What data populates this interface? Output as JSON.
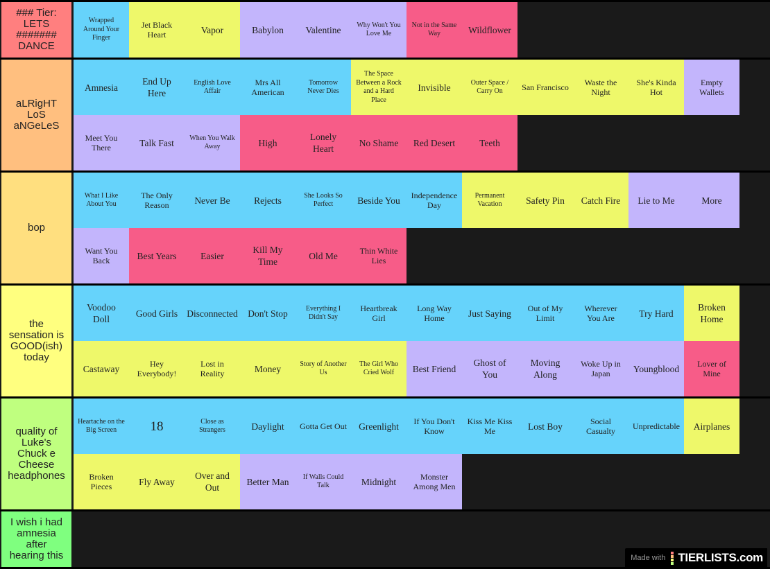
{
  "colors": {
    "b": "#66d3fb",
    "y": "#eef86a",
    "p": "#c3b5fc",
    "k": "#f75c88"
  },
  "tiers": [
    {
      "label": "### Tier:\nLETS\n#######\nDANCE",
      "color": "#ff7f7f",
      "rows": [
        [
          [
            "Wrapped Around Your Finger",
            "b"
          ],
          [
            "Jet Black Heart",
            "y"
          ],
          [
            "Vapor",
            "y"
          ],
          [
            "Babylon",
            "p"
          ],
          [
            "Valentine",
            "p"
          ],
          [
            "Why Won't You Love Me",
            "p"
          ],
          [
            "Not in the Same Way",
            "k"
          ],
          [
            "Wildflower",
            "k"
          ]
        ]
      ]
    },
    {
      "label": "aLRigHT\nLoS\naNGeLeS",
      "color": "#ffbf7f",
      "rows": [
        [
          [
            "Amnesia",
            "b"
          ],
          [
            "End Up Here",
            "b"
          ],
          [
            "English Love Affair",
            "b"
          ],
          [
            "Mrs All American",
            "b"
          ],
          [
            "Tomorrow Never Dies",
            "b"
          ],
          [
            "The Space Between a Rock and a Hard Place",
            "y"
          ],
          [
            "Invisible",
            "y"
          ],
          [
            "Outer Space / Carry On",
            "y"
          ],
          [
            "San Francisco",
            "y"
          ],
          [
            "Waste the Night",
            "y"
          ],
          [
            "She's Kinda Hot",
            "y"
          ],
          [
            "Empty Wallets",
            "p"
          ]
        ],
        [
          [
            "Meet You There",
            "p"
          ],
          [
            "Talk Fast",
            "p"
          ],
          [
            "When You Walk Away",
            "p"
          ],
          [
            "High",
            "k"
          ],
          [
            "Lonely Heart",
            "k"
          ],
          [
            "No Shame",
            "k"
          ],
          [
            "Red Desert",
            "k"
          ],
          [
            "Teeth",
            "k"
          ]
        ]
      ]
    },
    {
      "label": "bop",
      "color": "#ffdf7f",
      "rows": [
        [
          [
            "What I Like About You",
            "b"
          ],
          [
            "The Only Reason",
            "b"
          ],
          [
            "Never Be",
            "b"
          ],
          [
            "Rejects",
            "b"
          ],
          [
            "She Looks So Perfect",
            "b"
          ],
          [
            "Beside You",
            "b"
          ],
          [
            "Independence Day",
            "b"
          ],
          [
            "Permanent Vacation",
            "y"
          ],
          [
            "Safety Pin",
            "y"
          ],
          [
            "Catch Fire",
            "y"
          ],
          [
            "Lie to Me",
            "p"
          ],
          [
            "More",
            "p"
          ]
        ],
        [
          [
            "Want You Back",
            "p"
          ],
          [
            "Best Years",
            "k"
          ],
          [
            "Easier",
            "k"
          ],
          [
            "Kill My Time",
            "k"
          ],
          [
            "Old Me",
            "k"
          ],
          [
            "Thin White Lies",
            "k"
          ]
        ]
      ]
    },
    {
      "label": "the\nsensation is\nGOOD(ish)\ntoday",
      "color": "#ffff7f",
      "rows": [
        [
          [
            "Voodoo Doll",
            "b"
          ],
          [
            "Good Girls",
            "b"
          ],
          [
            "Disconnected",
            "b"
          ],
          [
            "Don't Stop",
            "b"
          ],
          [
            "Everything I Didn't Say",
            "b"
          ],
          [
            "Heartbreak Girl",
            "b"
          ],
          [
            "Long Way Home",
            "b"
          ],
          [
            "Just Saying",
            "b"
          ],
          [
            "Out of My Limit",
            "b"
          ],
          [
            "Wherever You Are",
            "b"
          ],
          [
            "Try Hard",
            "b"
          ],
          [
            "Broken Home",
            "y"
          ]
        ],
        [
          [
            "Castaway",
            "y"
          ],
          [
            "Hey Everybody!",
            "y"
          ],
          [
            "Lost in Reality",
            "y"
          ],
          [
            "Money",
            "y"
          ],
          [
            "Story of Another Us",
            "y"
          ],
          [
            "The Girl Who Cried Wolf",
            "y"
          ],
          [
            "Best Friend",
            "p"
          ],
          [
            "Ghost of You",
            "p"
          ],
          [
            "Moving Along",
            "p"
          ],
          [
            "Woke Up in Japan",
            "p"
          ],
          [
            "Youngblood",
            "p"
          ],
          [
            "Lover of Mine",
            "k"
          ]
        ]
      ]
    },
    {
      "label": "quality of\nLuke's\nChuck e\nCheese\nheadphones",
      "color": "#bfff7f",
      "rows": [
        [
          [
            "Heartache on the Big Screen",
            "b"
          ],
          [
            "18",
            "b"
          ],
          [
            "Close as Strangers",
            "b"
          ],
          [
            "Daylight",
            "b"
          ],
          [
            "Gotta Get Out",
            "b"
          ],
          [
            "Greenlight",
            "b"
          ],
          [
            "If You Don't Know",
            "b"
          ],
          [
            "Kiss Me Kiss Me",
            "b"
          ],
          [
            "Lost Boy",
            "b"
          ],
          [
            "Social Casualty",
            "b"
          ],
          [
            "Unpredictable",
            "b"
          ],
          [
            "Airplanes",
            "y"
          ]
        ],
        [
          [
            "Broken Pieces",
            "y"
          ],
          [
            "Fly Away",
            "y"
          ],
          [
            "Over and Out",
            "y"
          ],
          [
            "Better Man",
            "p"
          ],
          [
            "If Walls Could Talk",
            "p"
          ],
          [
            "Midnight",
            "p"
          ],
          [
            "Monster Among Men",
            "p"
          ]
        ]
      ]
    },
    {
      "label": "I wish i had\namnesia\nafter\nhearing this",
      "color": "#7fff7f",
      "rows": [
        []
      ]
    }
  ],
  "watermark": {
    "prefix": "Made with",
    "brand": "TIERLISTS.com",
    "bar_colors": [
      "#ff7f7f",
      "#ffbf7f",
      "#ffff7f",
      "#bfff7f"
    ]
  }
}
